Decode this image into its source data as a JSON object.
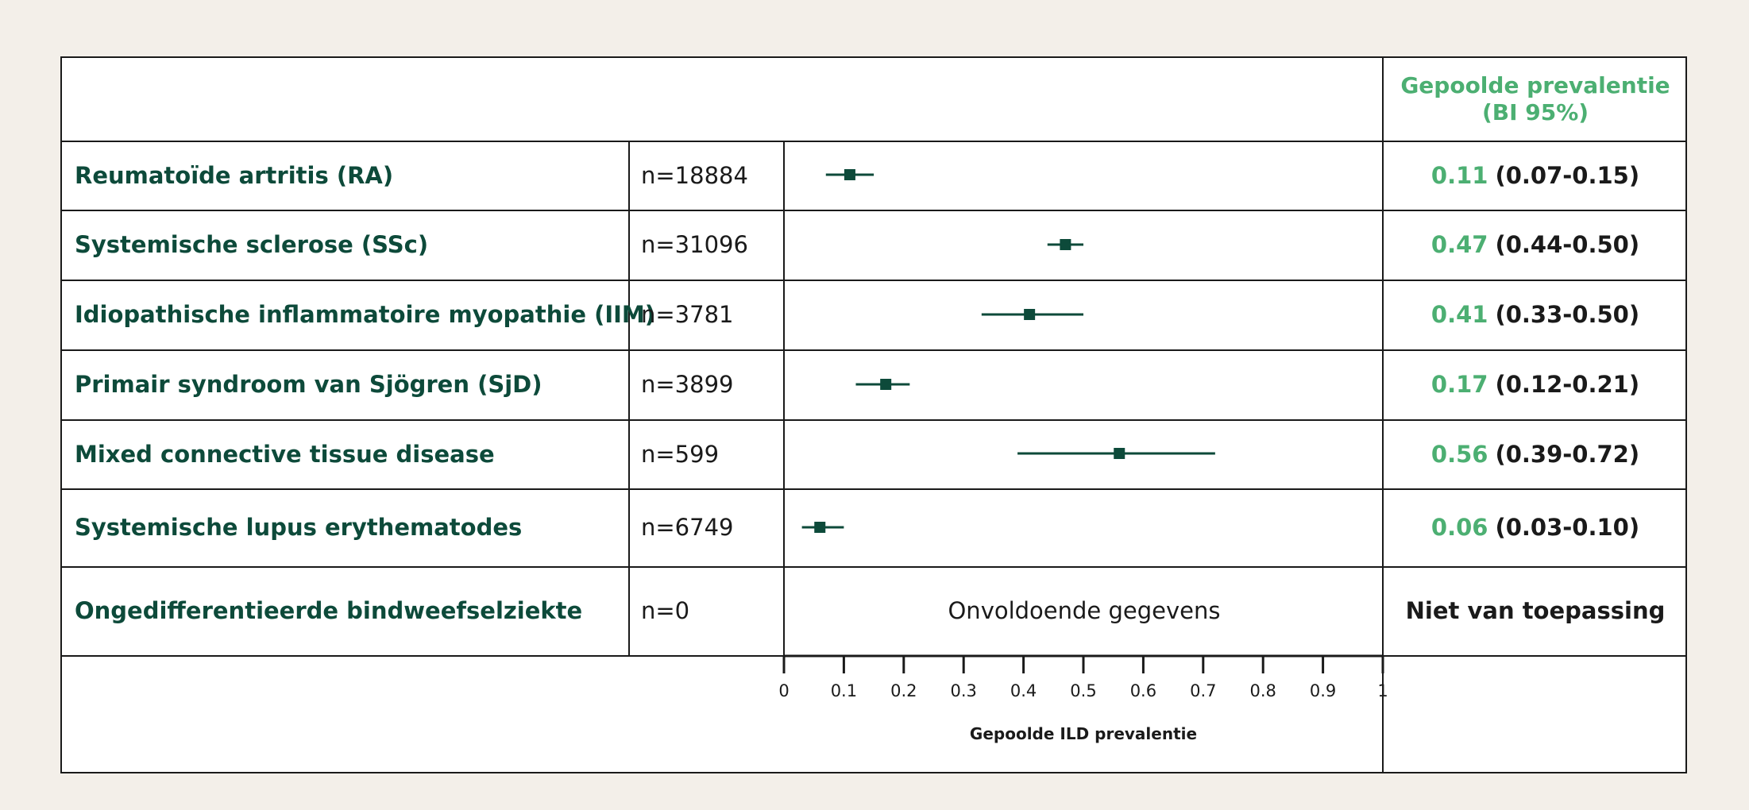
{
  "header": {
    "ci_title_line1": "Gepoolde prevalentie",
    "ci_title_line2": "(BI 95%)"
  },
  "rows": [
    {
      "label": "Reumatoïde artritis (RA)",
      "n": "n=18884",
      "estimate": "0.11",
      "ci": "(0.07-0.15)"
    },
    {
      "label": "Systemische sclerose (SSc)",
      "n": "n=31096",
      "estimate": "0.47",
      "ci": "(0.44-0.50)"
    },
    {
      "label": "Idiopathische inflammatoire myopathie (IIM)",
      "n": "n=3781",
      "estimate": "0.41",
      "ci": "(0.33-0.50)"
    },
    {
      "label": "Primair syndroom van Sjögren (SjD)",
      "n": "n=3899",
      "estimate": "0.17",
      "ci": "(0.12-0.21)"
    },
    {
      "label": "Mixed connective tissue disease",
      "n": "n=599",
      "estimate": "0.56",
      "ci": "(0.39-0.72)"
    },
    {
      "label": "Systemische lupus erythematodes",
      "n": "n=6749",
      "estimate": "0.06",
      "ci": "(0.03-0.10)"
    },
    {
      "label": "Ongedifferentieerde bindweefselziekte",
      "n": "n=0",
      "no_data_text": "Onvoldoende gegevens",
      "ci_text": "Niet van toepassing"
    }
  ],
  "chart_data": {
    "type": "forest",
    "xlabel": "Gepoolde ILD prevalentie",
    "xlim": [
      0,
      1
    ],
    "x_ticks": [
      "0",
      "0.1",
      "0.2",
      "0.3",
      "0.4",
      "0.5",
      "0.6",
      "0.7",
      "0.8",
      "0.9",
      "1"
    ],
    "points": [
      {
        "estimate": 0.11,
        "lower": 0.07,
        "upper": 0.15
      },
      {
        "estimate": 0.47,
        "lower": 0.44,
        "upper": 0.5
      },
      {
        "estimate": 0.41,
        "lower": 0.33,
        "upper": 0.5
      },
      {
        "estimate": 0.17,
        "lower": 0.12,
        "upper": 0.21
      },
      {
        "estimate": 0.56,
        "lower": 0.39,
        "upper": 0.72
      },
      {
        "estimate": 0.06,
        "lower": 0.03,
        "upper": 0.1
      },
      null
    ],
    "colors": {
      "marker": "#0d4a3a",
      "estimate_text": "#4caf72",
      "label_text": "#0d4a3a"
    }
  }
}
